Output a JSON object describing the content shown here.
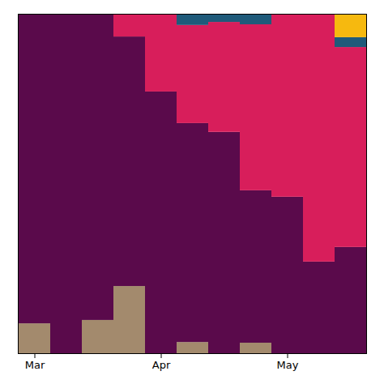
{
  "chart_data": {
    "type": "bar",
    "stacked": true,
    "tick_labels": "x",
    "categories": [
      "Mar",
      null,
      null,
      null,
      "Apr",
      null,
      null,
      null,
      "May",
      null,
      null
    ],
    "ylim": [
      0,
      100
    ],
    "series": [
      {
        "color": "#a38a6d",
        "values": [
          8.8,
          0,
          9.8,
          19.8,
          0,
          3.3,
          0,
          3.1,
          0,
          0,
          0
        ]
      },
      {
        "color": "#5a0a4b",
        "values": [
          91.2,
          100,
          90.2,
          73.5,
          77.1,
          64.5,
          65.2,
          44.9,
          46.1,
          27.0,
          31.3
        ]
      },
      {
        "color": "#d81e5b",
        "values": [
          0,
          0,
          0,
          6.7,
          22.9,
          28.9,
          32.4,
          48.9,
          53.9,
          73.0,
          58.9
        ]
      },
      {
        "color": "#1f5a7a",
        "values": [
          0,
          0,
          0,
          0,
          0,
          3.3,
          2.4,
          3.1,
          0,
          0,
          2.9
        ]
      },
      {
        "color": "#f6b90f",
        "values": [
          0,
          0,
          0,
          0,
          0,
          0,
          0,
          0,
          0,
          0,
          6.9
        ]
      }
    ]
  }
}
